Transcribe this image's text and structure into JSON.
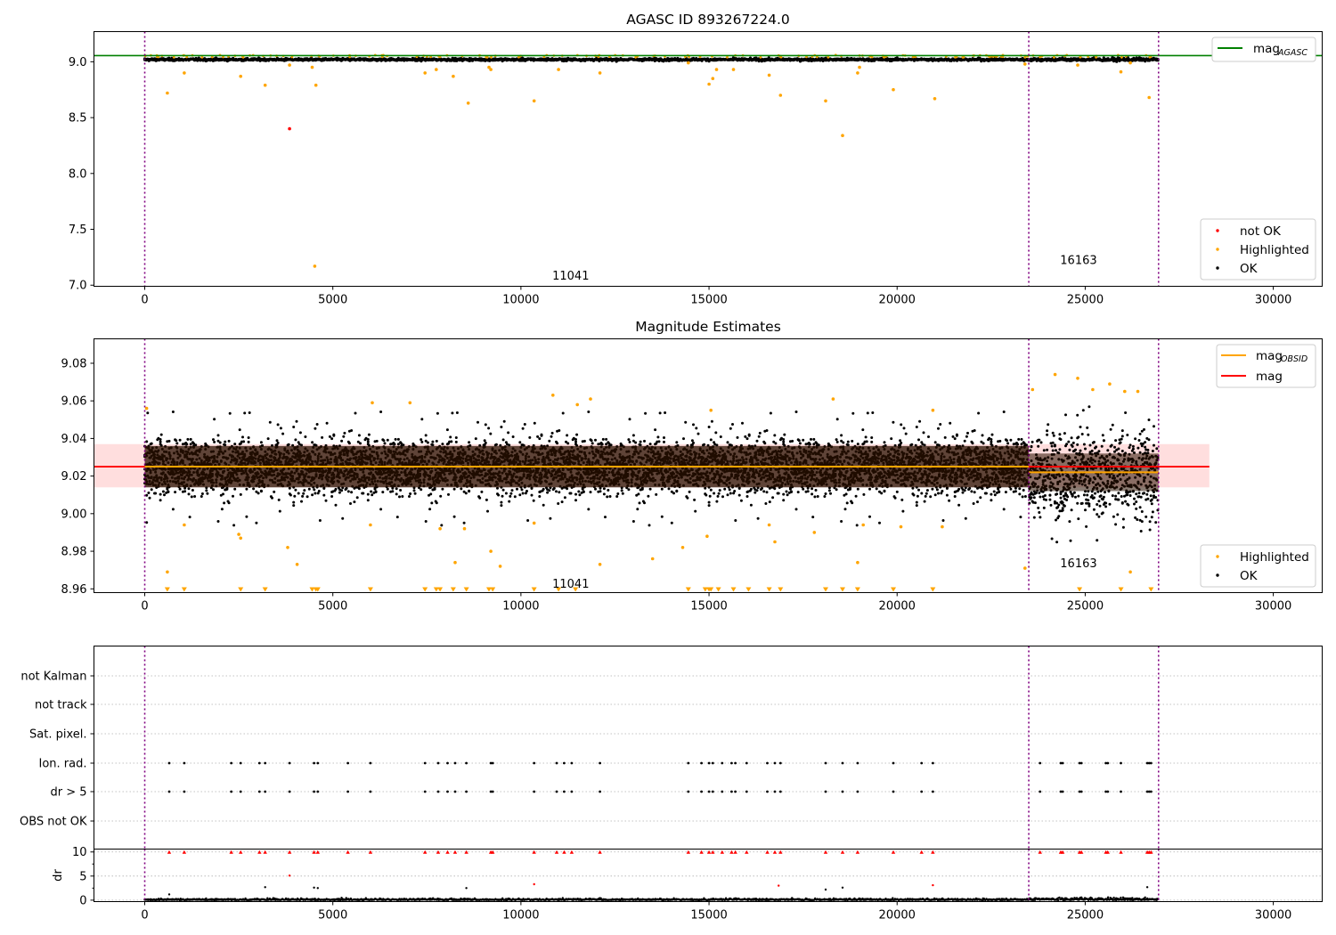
{
  "chart_data": [
    {
      "id": "agasc",
      "type": "scatter",
      "title": "AGASC ID 893267224.0",
      "xlim": [
        -1350,
        31300
      ],
      "ylim": [
        6.99,
        9.27
      ],
      "xticks": [
        0,
        5000,
        10000,
        15000,
        20000,
        25000,
        30000
      ],
      "yticks": [
        7.0,
        7.5,
        8.0,
        8.5,
        9.0
      ],
      "ytick_labels": [
        "7.0",
        "7.5",
        "8.0",
        "8.5",
        "9.0"
      ],
      "mag_agasc": 9.055,
      "obs_boundaries": [
        0,
        23500,
        26950
      ],
      "obs_labels": [
        {
          "text": "11041",
          "x": 11750,
          "y": 7.08
        },
        {
          "text": "16163",
          "x": 25250,
          "y": 7.22
        }
      ],
      "band": {
        "center": 9.02,
        "spread": 0.03
      },
      "series_ok_region": [
        0,
        26950
      ],
      "not_ok_points": [
        [
          3850,
          8.4
        ]
      ],
      "highlighted_points": [
        [
          600,
          8.72
        ],
        [
          1050,
          8.9
        ],
        [
          2550,
          8.87
        ],
        [
          3200,
          8.79
        ],
        [
          3850,
          8.97
        ],
        [
          4450,
          8.95
        ],
        [
          4550,
          8.79
        ],
        [
          4520,
          7.17
        ],
        [
          7450,
          8.9
        ],
        [
          7750,
          8.93
        ],
        [
          8200,
          8.87
        ],
        [
          8600,
          8.63
        ],
        [
          9200,
          8.93
        ],
        [
          9150,
          8.95
        ],
        [
          10350,
          8.65
        ],
        [
          11000,
          8.93
        ],
        [
          12100,
          8.9
        ],
        [
          14450,
          8.99
        ],
        [
          15000,
          8.8
        ],
        [
          15100,
          8.85
        ],
        [
          15200,
          8.93
        ],
        [
          15650,
          8.93
        ],
        [
          16600,
          8.88
        ],
        [
          16900,
          8.7
        ],
        [
          18100,
          8.65
        ],
        [
          18550,
          8.34
        ],
        [
          18950,
          8.9
        ],
        [
          19000,
          8.95
        ],
        [
          19900,
          8.75
        ],
        [
          21000,
          8.67
        ],
        [
          23400,
          8.98
        ],
        [
          24800,
          8.97
        ],
        [
          25950,
          8.91
        ],
        [
          26700,
          8.68
        ],
        [
          26200,
          8.99
        ]
      ],
      "legend_top": [
        {
          "label": "mag",
          "sub": "AGASC",
          "color": "#008000"
        }
      ],
      "legend_bottom": [
        {
          "label": "not OK",
          "color": "#ff0000"
        },
        {
          "label": "Highlighted",
          "color": "#ffa500"
        },
        {
          "label": "OK",
          "color": "#000000"
        }
      ]
    },
    {
      "id": "estimates",
      "type": "scatter",
      "title": "Magnitude Estimates",
      "xlim": [
        -1350,
        31300
      ],
      "ylim": [
        8.958,
        9.093
      ],
      "xticks": [
        0,
        5000,
        10000,
        15000,
        20000,
        25000,
        30000
      ],
      "yticks": [
        8.96,
        8.98,
        9.0,
        9.02,
        9.04,
        9.06,
        9.08
      ],
      "ytick_labels": [
        "8.96",
        "8.98",
        "9.00",
        "9.02",
        "9.04",
        "9.06",
        "9.08"
      ],
      "mag": 9.025,
      "mag_band": [
        9.014,
        9.037
      ],
      "mag_line_xrange": [
        -1350,
        28300
      ],
      "mag_obsid_segments": [
        {
          "x": [
            0,
            23500
          ],
          "y": 9.025
        },
        {
          "x": [
            23500,
            26950
          ],
          "y": 9.022
        }
      ],
      "obs_boundaries": [
        0,
        23500,
        26950
      ],
      "obs_labels": [
        {
          "text": "11041",
          "x": 11750,
          "y": 8.9625
        },
        {
          "text": "16163",
          "x": 25250,
          "y": 8.9735
        }
      ],
      "highlighted_points": [
        [
          50,
          9.056
        ],
        [
          600,
          8.969
        ],
        [
          1050,
          8.994
        ],
        [
          2550,
          8.987
        ],
        [
          2500,
          8.989
        ],
        [
          3800,
          8.982
        ],
        [
          4050,
          8.973
        ],
        [
          6050,
          9.059
        ],
        [
          6000,
          8.994
        ],
        [
          7050,
          9.059
        ],
        [
          7850,
          8.992
        ],
        [
          8250,
          8.974
        ],
        [
          8500,
          8.992
        ],
        [
          9200,
          8.98
        ],
        [
          9450,
          8.972
        ],
        [
          10350,
          8.995
        ],
        [
          10850,
          9.063
        ],
        [
          11500,
          9.058
        ],
        [
          11850,
          9.061
        ],
        [
          12100,
          8.973
        ],
        [
          13500,
          8.976
        ],
        [
          14300,
          8.982
        ],
        [
          14950,
          8.988
        ],
        [
          15050,
          9.055
        ],
        [
          16600,
          8.994
        ],
        [
          16750,
          8.985
        ],
        [
          17800,
          8.99
        ],
        [
          18300,
          9.061
        ],
        [
          18950,
          8.974
        ],
        [
          19100,
          8.994
        ],
        [
          20100,
          8.993
        ],
        [
          20950,
          9.055
        ],
        [
          21200,
          8.993
        ],
        [
          23400,
          8.971
        ],
        [
          23600,
          9.066
        ],
        [
          24200,
          9.074
        ],
        [
          24800,
          9.072
        ],
        [
          25200,
          9.066
        ],
        [
          25650,
          9.069
        ],
        [
          26050,
          9.065
        ],
        [
          26200,
          8.969
        ],
        [
          26400,
          9.065
        ]
      ],
      "floor_markers": [
        600,
        1050,
        2550,
        3200,
        4450,
        4550,
        4600,
        6000,
        7450,
        7750,
        7850,
        8200,
        8550,
        9150,
        9250,
        10350,
        11000,
        11450,
        14450,
        14900,
        15000,
        15050,
        15250,
        15650,
        16050,
        16600,
        16900,
        18100,
        18550,
        18950,
        19900,
        20950,
        24850,
        25950,
        26750
      ],
      "legend_top": [
        {
          "label": "mag",
          "sub": "OBSID",
          "color": "#ffa500"
        },
        {
          "label": "mag",
          "sub": "",
          "color": "#ff0000"
        }
      ],
      "legend_bottom": [
        {
          "label": "Highlighted",
          "color": "#ffa500"
        },
        {
          "label": "OK",
          "color": "#000000"
        }
      ]
    },
    {
      "id": "flags",
      "type": "scatter",
      "xlim": [
        -1350,
        31300
      ],
      "categories": [
        "not Kalman",
        "not track",
        "Sat. pixel.",
        "Ion. rad.",
        "dr > 5",
        "OBS not OK"
      ],
      "flag_x": [
        650,
        1050,
        2300,
        2550,
        3050,
        3200,
        3850,
        4500,
        4600,
        5400,
        6000,
        7450,
        7800,
        8050,
        8250,
        8550,
        9200,
        9250,
        10350,
        10950,
        11150,
        11350,
        12100,
        14450,
        14800,
        15000,
        15100,
        15350,
        15600,
        15700,
        16000,
        16550,
        16750,
        16900,
        18100,
        18550,
        18950,
        19900,
        20650,
        20950,
        23800,
        24350,
        24400,
        24850,
        24900,
        25550,
        25600,
        25950,
        26650,
        26700,
        26750
      ]
    },
    {
      "id": "dr",
      "type": "scatter",
      "xlim": [
        -1350,
        31300
      ],
      "ylim": [
        -0.3,
        10.6
      ],
      "ylabel": "dr",
      "yticks": [
        0,
        5,
        10
      ],
      "ytick_labels": [
        "0",
        "5",
        "10"
      ],
      "xticks": [
        0,
        5000,
        10000,
        15000,
        20000,
        25000,
        30000
      ],
      "clipped_x": [
        650,
        1050,
        2300,
        2550,
        3050,
        3200,
        3850,
        4500,
        4600,
        5400,
        6000,
        7450,
        7800,
        8050,
        8250,
        8550,
        9200,
        9250,
        10350,
        10950,
        11150,
        11350,
        12100,
        14450,
        14800,
        15000,
        15100,
        15350,
        15600,
        15700,
        16000,
        16550,
        16750,
        16900,
        18100,
        18550,
        18950,
        19900,
        20650,
        20950,
        23800,
        24350,
        24400,
        24850,
        24900,
        25550,
        25600,
        25950,
        26650,
        26700,
        26750
      ],
      "red_points": [
        [
          3850,
          5.1
        ],
        [
          10350,
          3.3
        ],
        [
          16850,
          3.0
        ],
        [
          20950,
          3.1
        ]
      ],
      "black_points": [
        [
          650,
          1.2
        ],
        [
          3200,
          2.7
        ],
        [
          4500,
          2.6
        ],
        [
          4600,
          2.5
        ],
        [
          8550,
          2.5
        ],
        [
          18100,
          2.2
        ],
        [
          18550,
          2.6
        ],
        [
          26650,
          2.7
        ]
      ]
    }
  ]
}
